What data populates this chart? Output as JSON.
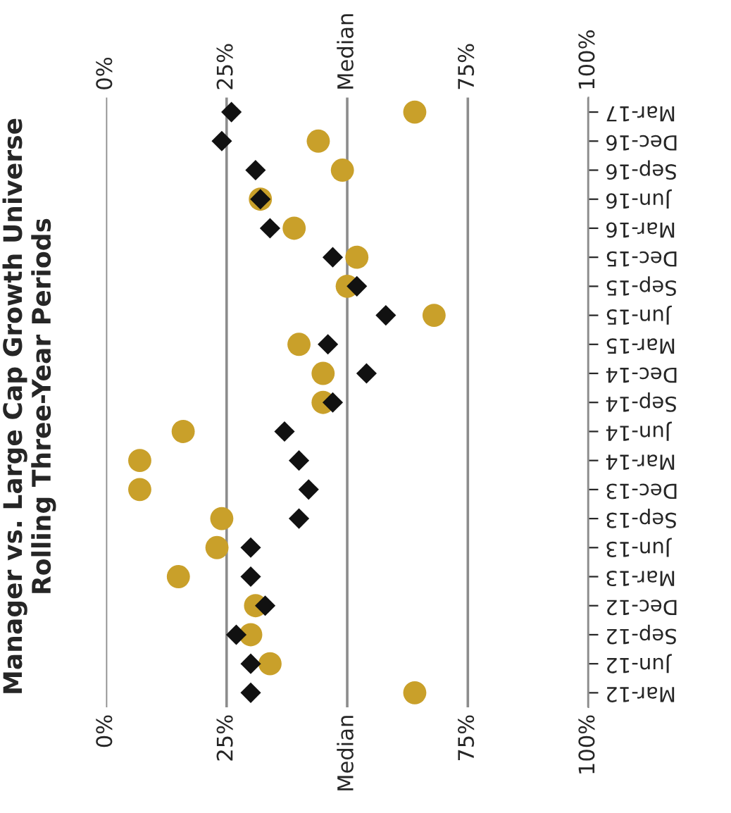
{
  "chart_data": {
    "type": "scatter",
    "title": "Manager vs. Large Cap Growth Universe\nRolling Three-Year Periods",
    "orientation": "horizontal",
    "categories": [
      "Mar-17",
      "Dec-16",
      "Sep-16",
      "Jun-16",
      "Mar-16",
      "Dec-15",
      "Sep-15",
      "Jun-15",
      "Mar-15",
      "Dec-14",
      "Sep-14",
      "Jun-14",
      "Mar-14",
      "Dec-13",
      "Sep-13",
      "Jun-13",
      "Mar-13",
      "Dec-12",
      "Sep-12",
      "Jun-12",
      "Mar-12"
    ],
    "series": [
      {
        "color": "#c9a02a",
        "marker": "circle",
        "values": [
          64,
          44,
          49,
          32,
          39,
          52,
          50,
          68,
          40,
          45,
          45,
          16,
          7,
          7,
          24,
          23,
          15,
          31,
          30,
          34,
          64
        ]
      },
      {
        "color": "#111111",
        "marker": "diamond",
        "values": [
          26,
          24,
          31,
          32,
          34,
          47,
          52,
          58,
          46,
          54,
          47,
          37,
          40,
          42,
          40,
          30,
          30,
          33,
          27,
          30,
          30
        ]
      }
    ],
    "xlim": [
      0,
      100
    ],
    "xticks": [
      {
        "value": 0,
        "label": "0%"
      },
      {
        "value": 25,
        "label": "25%"
      },
      {
        "value": 50,
        "label": "Median"
      },
      {
        "value": 75,
        "label": "75%"
      },
      {
        "value": 100,
        "label": "100%"
      }
    ],
    "x2lim": [
      0,
      100
    ],
    "x2ticks": [
      {
        "value": 0,
        "label": "0%"
      },
      {
        "value": 25,
        "label": "25%"
      },
      {
        "value": 50,
        "label": "Median"
      },
      {
        "value": 75,
        "label": "75%"
      },
      {
        "value": 100,
        "label": "100%"
      }
    ],
    "grid": "x",
    "legend": false
  }
}
